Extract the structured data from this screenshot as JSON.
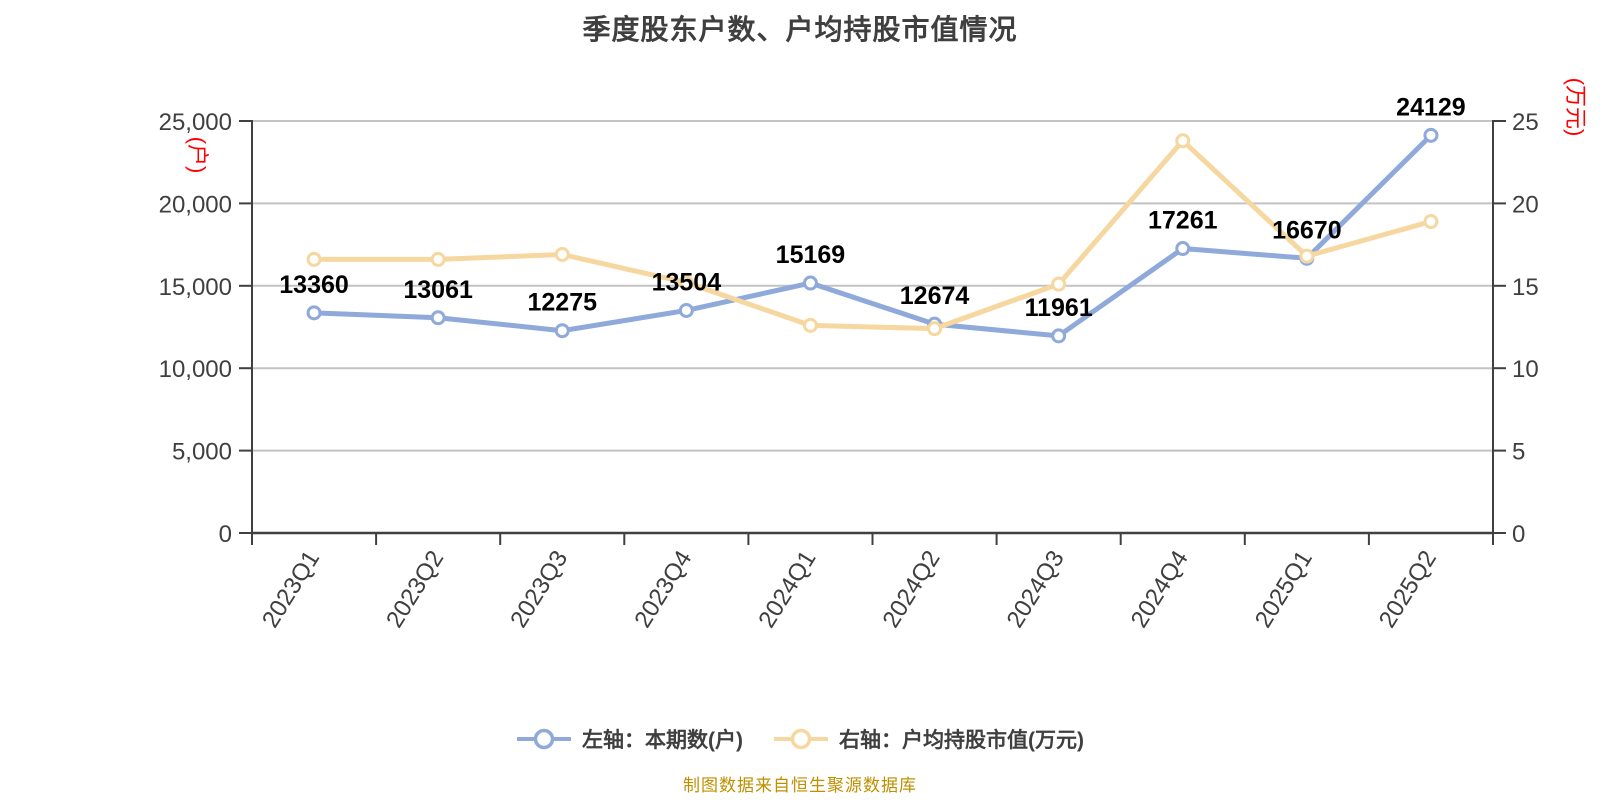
{
  "title": "季度股东户数、户均持股市值情况",
  "footer": "制图数据来自恒生聚源数据库",
  "colors": {
    "blue_series": "#8EA9DA",
    "yellow_series": "#F6D7A0",
    "axis_line": "#404040",
    "grid_line": "#C3C3C3",
    "tick_text": "#3F3F3F",
    "title_text": "#3F3F3F",
    "data_label": "#000000",
    "unit_label_red": "#FF0000",
    "footer_gold": "#BF8F00",
    "marker_fill": "#FFFFFF"
  },
  "legend": [
    {
      "label": "左轴：本期数(户)",
      "color": "#8EA9DA"
    },
    {
      "label": "右轴：户均持股市值(万元)",
      "color": "#F6D7A0"
    }
  ],
  "chart_data": {
    "type": "line",
    "title": "季度股东户数、户均持股市值情况",
    "categories": [
      "2023Q1",
      "2023Q2",
      "2023Q3",
      "2023Q4",
      "2024Q1",
      "2024Q2",
      "2024Q3",
      "2024Q4",
      "2025Q1",
      "2025Q2"
    ],
    "series": [
      {
        "id": "shareholder-count",
        "name": "左轴：本期数(户)",
        "axis": "left",
        "color": "#8EA9DA",
        "values": [
          13360,
          13061,
          12275,
          13504,
          15169,
          12674,
          11961,
          17261,
          16670,
          24129
        ],
        "show_labels": true
      },
      {
        "id": "avg-holding-value",
        "name": "右轴：户均持股市值(万元)",
        "axis": "right",
        "color": "#F6D7A0",
        "values": [
          16.6,
          16.6,
          16.9,
          15.2,
          12.6,
          12.4,
          15.1,
          23.8,
          16.8,
          18.9
        ],
        "show_labels": false
      }
    ],
    "left_axis": {
      "label": "(户)",
      "label_color": "#FF0000",
      "min": 0,
      "max": 25000,
      "ticks": [
        "0",
        "5,000",
        "10,000",
        "15,000",
        "20,000",
        "25,000"
      ]
    },
    "right_axis": {
      "label": "(万元)",
      "label_color": "#FF0000",
      "min": 0,
      "max": 25,
      "ticks": [
        "0",
        "5",
        "10",
        "15",
        "20",
        "25"
      ]
    },
    "grid": true,
    "legend_position": "bottom",
    "x_tick_rotation": -58
  }
}
